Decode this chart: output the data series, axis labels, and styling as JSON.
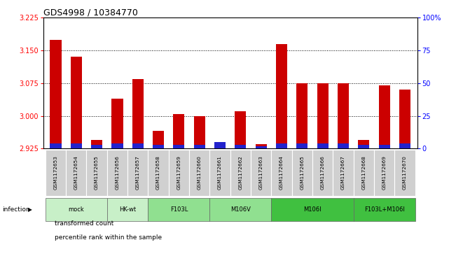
{
  "title": "GDS4998 / 10384770",
  "samples": [
    "GSM1172653",
    "GSM1172654",
    "GSM1172655",
    "GSM1172656",
    "GSM1172657",
    "GSM1172658",
    "GSM1172659",
    "GSM1172660",
    "GSM1172661",
    "GSM1172662",
    "GSM1172663",
    "GSM1172664",
    "GSM1172665",
    "GSM1172666",
    "GSM1172667",
    "GSM1172668",
    "GSM1172669",
    "GSM1172670"
  ],
  "transformed_counts": [
    3.175,
    3.135,
    2.945,
    3.04,
    3.085,
    2.965,
    3.005,
    3.0,
    2.94,
    3.01,
    2.935,
    3.165,
    3.075,
    3.075,
    3.075,
    2.945,
    3.07,
    3.06
  ],
  "percentile_ranks": [
    4,
    4,
    3,
    4,
    4,
    3,
    3,
    3,
    5,
    3,
    2,
    4,
    4,
    4,
    4,
    3,
    3,
    4
  ],
  "group_spans": [
    {
      "label": "mock",
      "indices": [
        0,
        1,
        2
      ],
      "color": "#c8f0c8"
    },
    {
      "label": "HK-wt",
      "indices": [
        3,
        4
      ],
      "color": "#c8f0c8"
    },
    {
      "label": "F103L",
      "indices": [
        5,
        6,
        7
      ],
      "color": "#90e090"
    },
    {
      "label": "M106V",
      "indices": [
        8,
        9,
        10
      ],
      "color": "#90e090"
    },
    {
      "label": "M106I",
      "indices": [
        11,
        12,
        13,
        14
      ],
      "color": "#40c040"
    },
    {
      "label": "F103L+M106I",
      "indices": [
        15,
        16,
        17
      ],
      "color": "#40c040"
    }
  ],
  "ylim": [
    2.925,
    3.225
  ],
  "y_ticks_left": [
    2.925,
    3.0,
    3.075,
    3.15,
    3.225
  ],
  "y_ticks_right_vals": [
    0,
    25,
    50,
    75,
    100
  ],
  "y_ticks_right_labels": [
    "0",
    "25",
    "50",
    "75",
    "100%"
  ],
  "grid_lines": [
    3.0,
    3.075,
    3.15
  ],
  "bar_color_red": "#cc0000",
  "bar_color_blue": "#2222cc",
  "bar_width": 0.55,
  "sample_box_color": "#d0d0d0",
  "legend_items": [
    {
      "label": "transformed count",
      "color": "#cc0000"
    },
    {
      "label": "percentile rank within the sample",
      "color": "#2222cc"
    }
  ]
}
